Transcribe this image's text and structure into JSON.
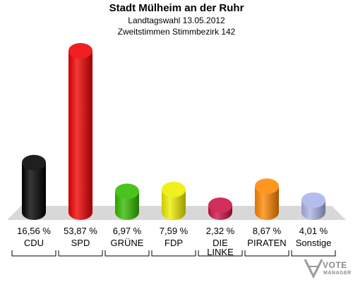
{
  "header": {
    "title": "Stadt Mülheim an der Ruhr",
    "subtitle": "Landtagswahl 13.05.2012",
    "subtitle2": "Zweitstimmen Stimmbezirk 142"
  },
  "logo": {
    "line1": "VOTE",
    "line2": "MANAGER"
  },
  "chart_data": {
    "type": "bar",
    "categories": [
      "CDU",
      "SPD",
      "GRÜNE",
      "FDP",
      "DIE LINKE",
      "PIRATEN",
      "Sonstige"
    ],
    "category_lines": [
      [
        "CDU"
      ],
      [
        "SPD"
      ],
      [
        "GRÜNE"
      ],
      [
        "FDP"
      ],
      [
        "DIE",
        "LINKE"
      ],
      [
        "PIRATEN"
      ],
      [
        "Sonstige"
      ]
    ],
    "values": [
      16.56,
      53.87,
      6.97,
      7.59,
      2.32,
      8.67,
      4.01
    ],
    "value_labels": [
      "16,56 %",
      "53,87 %",
      "6,97 %",
      "7,59 %",
      "2,32 %",
      "8,67 %",
      "4,01 %"
    ],
    "colors": [
      "#000000",
      "#ee0000",
      "#33bb00",
      "#eeee00",
      "#cc1144",
      "#ff8800",
      "#aab4e8"
    ],
    "ylim": [
      0,
      53.87
    ],
    "grid": false,
    "legend": "none"
  }
}
